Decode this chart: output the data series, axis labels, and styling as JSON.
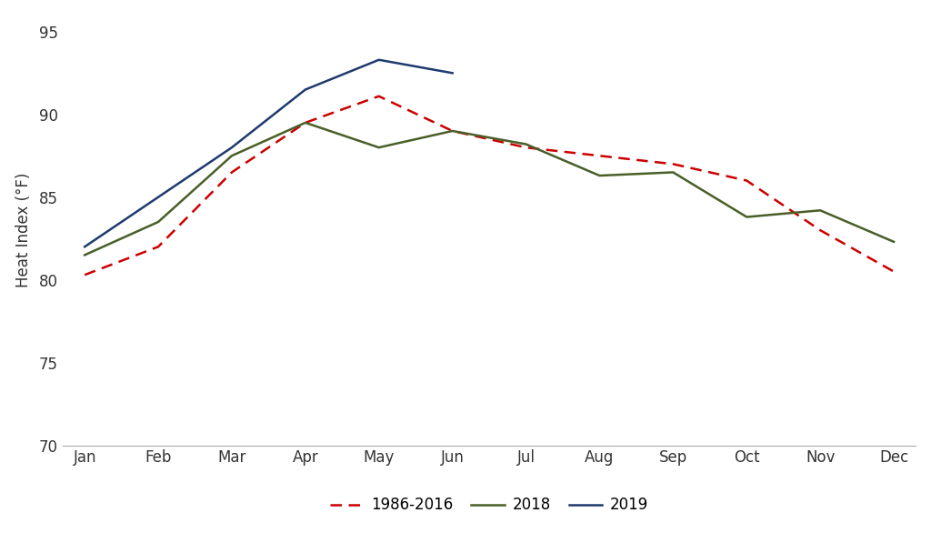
{
  "months": [
    "Jan",
    "Feb",
    "Mar",
    "Apr",
    "May",
    "Jun",
    "Jul",
    "Aug",
    "Sep",
    "Oct",
    "Nov",
    "Dec"
  ],
  "series_1986_2016": [
    80.3,
    82.0,
    86.5,
    89.5,
    91.1,
    89.0,
    88.0,
    87.5,
    87.0,
    86.0,
    83.0,
    80.5
  ],
  "series_2018": [
    81.5,
    83.5,
    87.5,
    89.5,
    88.0,
    89.0,
    88.2,
    86.3,
    86.5,
    83.8,
    84.2,
    82.3
  ],
  "series_2019_x": [
    0,
    1,
    2,
    3,
    4,
    5
  ],
  "series_2019_y": [
    82.0,
    85.0,
    88.0,
    91.5,
    93.3,
    92.5
  ],
  "color_1986_2016": "#cc0000",
  "color_2018": "#4a5e28",
  "color_2019": "#1f3a6e",
  "ylabel": "Heat Index (°F)",
  "ylim": [
    70,
    96
  ],
  "yticks": [
    70,
    75,
    80,
    85,
    90,
    95
  ],
  "background_color": "#ffffff",
  "legend_label_1986_2016": "1986-2016",
  "legend_label_2018": "2018",
  "legend_label_2019": "2019",
  "spine_color": "#aaaaaa",
  "linewidth": 1.8
}
